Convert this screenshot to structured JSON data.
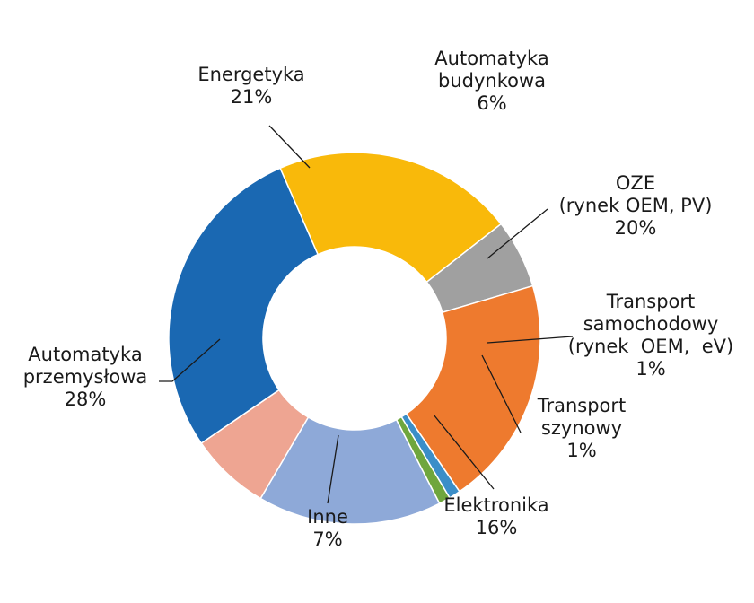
{
  "chart_data": {
    "type": "pie",
    "title": "",
    "categories": [
      [
        "Automatyka",
        "budynkowa"
      ],
      [
        "OZE",
        "(rynek OEM, PV)"
      ],
      [
        "Transport",
        "samochodowy",
        "(rynek  OEM,  eV)"
      ],
      [
        "Transport",
        "szynowy"
      ],
      [
        "Elektronika"
      ],
      [
        "Inne"
      ],
      [
        "Automatyka",
        "przemysłowa"
      ],
      [
        "Energetyka"
      ]
    ],
    "values": [
      6,
      20,
      1,
      1,
      16,
      7,
      28,
      21
    ],
    "value_labels": [
      "6%",
      "20%",
      "1%",
      "1%",
      "16%",
      "7%",
      "28%",
      "21%"
    ],
    "colors": [
      "#a0a0a0",
      "#ee7a2e",
      "#3b8ec8",
      "#6fa63d",
      "#8ea9d8",
      "#eea592",
      "#1a68b2",
      "#f9b90a"
    ],
    "donut": true,
    "legend": "none",
    "labels": "outside with leader lines"
  }
}
